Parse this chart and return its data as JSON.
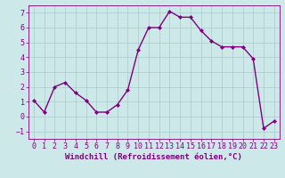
{
  "x": [
    0,
    1,
    2,
    3,
    4,
    5,
    6,
    7,
    8,
    9,
    10,
    11,
    12,
    13,
    14,
    15,
    16,
    17,
    18,
    19,
    20,
    21,
    22,
    23
  ],
  "y": [
    1.1,
    0.3,
    2.0,
    2.3,
    1.6,
    1.1,
    0.3,
    0.3,
    0.8,
    1.8,
    4.5,
    6.0,
    6.0,
    7.1,
    6.7,
    6.7,
    5.8,
    5.1,
    4.7,
    4.7,
    4.7,
    3.9,
    -0.8,
    -0.3
  ],
  "line_color": "#800080",
  "marker": "D",
  "marker_size": 2,
  "linewidth": 1.0,
  "xlabel": "Windchill (Refroidissement éolien,°C)",
  "xlabel_fontsize": 6.5,
  "xlim": [
    -0.5,
    23.5
  ],
  "ylim": [
    -1.5,
    7.5
  ],
  "yticks": [
    -1,
    0,
    1,
    2,
    3,
    4,
    5,
    6,
    7
  ],
  "xticks": [
    0,
    1,
    2,
    3,
    4,
    5,
    6,
    7,
    8,
    9,
    10,
    11,
    12,
    13,
    14,
    15,
    16,
    17,
    18,
    19,
    20,
    21,
    22,
    23
  ],
  "grid_color": "#aacccc",
  "background_color": "#cce8e8",
  "tick_label_fontsize": 6.0,
  "tick_label_color": "#800080",
  "axis_color": "#800080",
  "xlabel_color": "#800080"
}
